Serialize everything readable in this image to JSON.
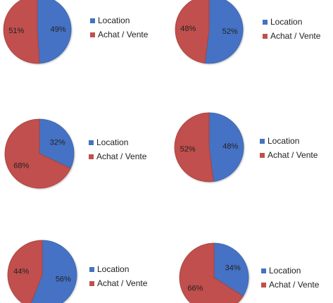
{
  "legend": {
    "location": "Location",
    "achat_vente": "Achat / Vente"
  },
  "colors": {
    "location": "#4472C4",
    "location_edge": "#3B63AC",
    "achat_vente": "#C0504D",
    "achat_vente_edge": "#A8403D"
  },
  "chart_data": [
    {
      "type": "pie",
      "slices": [
        {
          "name": "Location",
          "value": 49,
          "label": "49%"
        },
        {
          "name": "Achat / Vente",
          "value": 51,
          "label": "51%"
        }
      ]
    },
    {
      "type": "pie",
      "slices": [
        {
          "name": "Location",
          "value": 52,
          "label": "52%"
        },
        {
          "name": "Achat / Vente",
          "value": 48,
          "label": "48%"
        }
      ]
    },
    {
      "type": "pie",
      "slices": [
        {
          "name": "Location",
          "value": 32,
          "label": "32%"
        },
        {
          "name": "Achat / Vente",
          "value": 68,
          "label": "68%"
        }
      ]
    },
    {
      "type": "pie",
      "slices": [
        {
          "name": "Location",
          "value": 48,
          "label": "48%"
        },
        {
          "name": "Achat / Vente",
          "value": 52,
          "label": "52%"
        }
      ]
    },
    {
      "type": "pie",
      "slices": [
        {
          "name": "Location",
          "value": 56,
          "label": "56%"
        },
        {
          "name": "Achat / Vente",
          "value": 44,
          "label": "44%"
        }
      ]
    },
    {
      "type": "pie",
      "slices": [
        {
          "name": "Location",
          "value": 34,
          "label": "34%"
        },
        {
          "name": "Achat / Vente",
          "value": 66,
          "label": "66%"
        }
      ]
    }
  ]
}
